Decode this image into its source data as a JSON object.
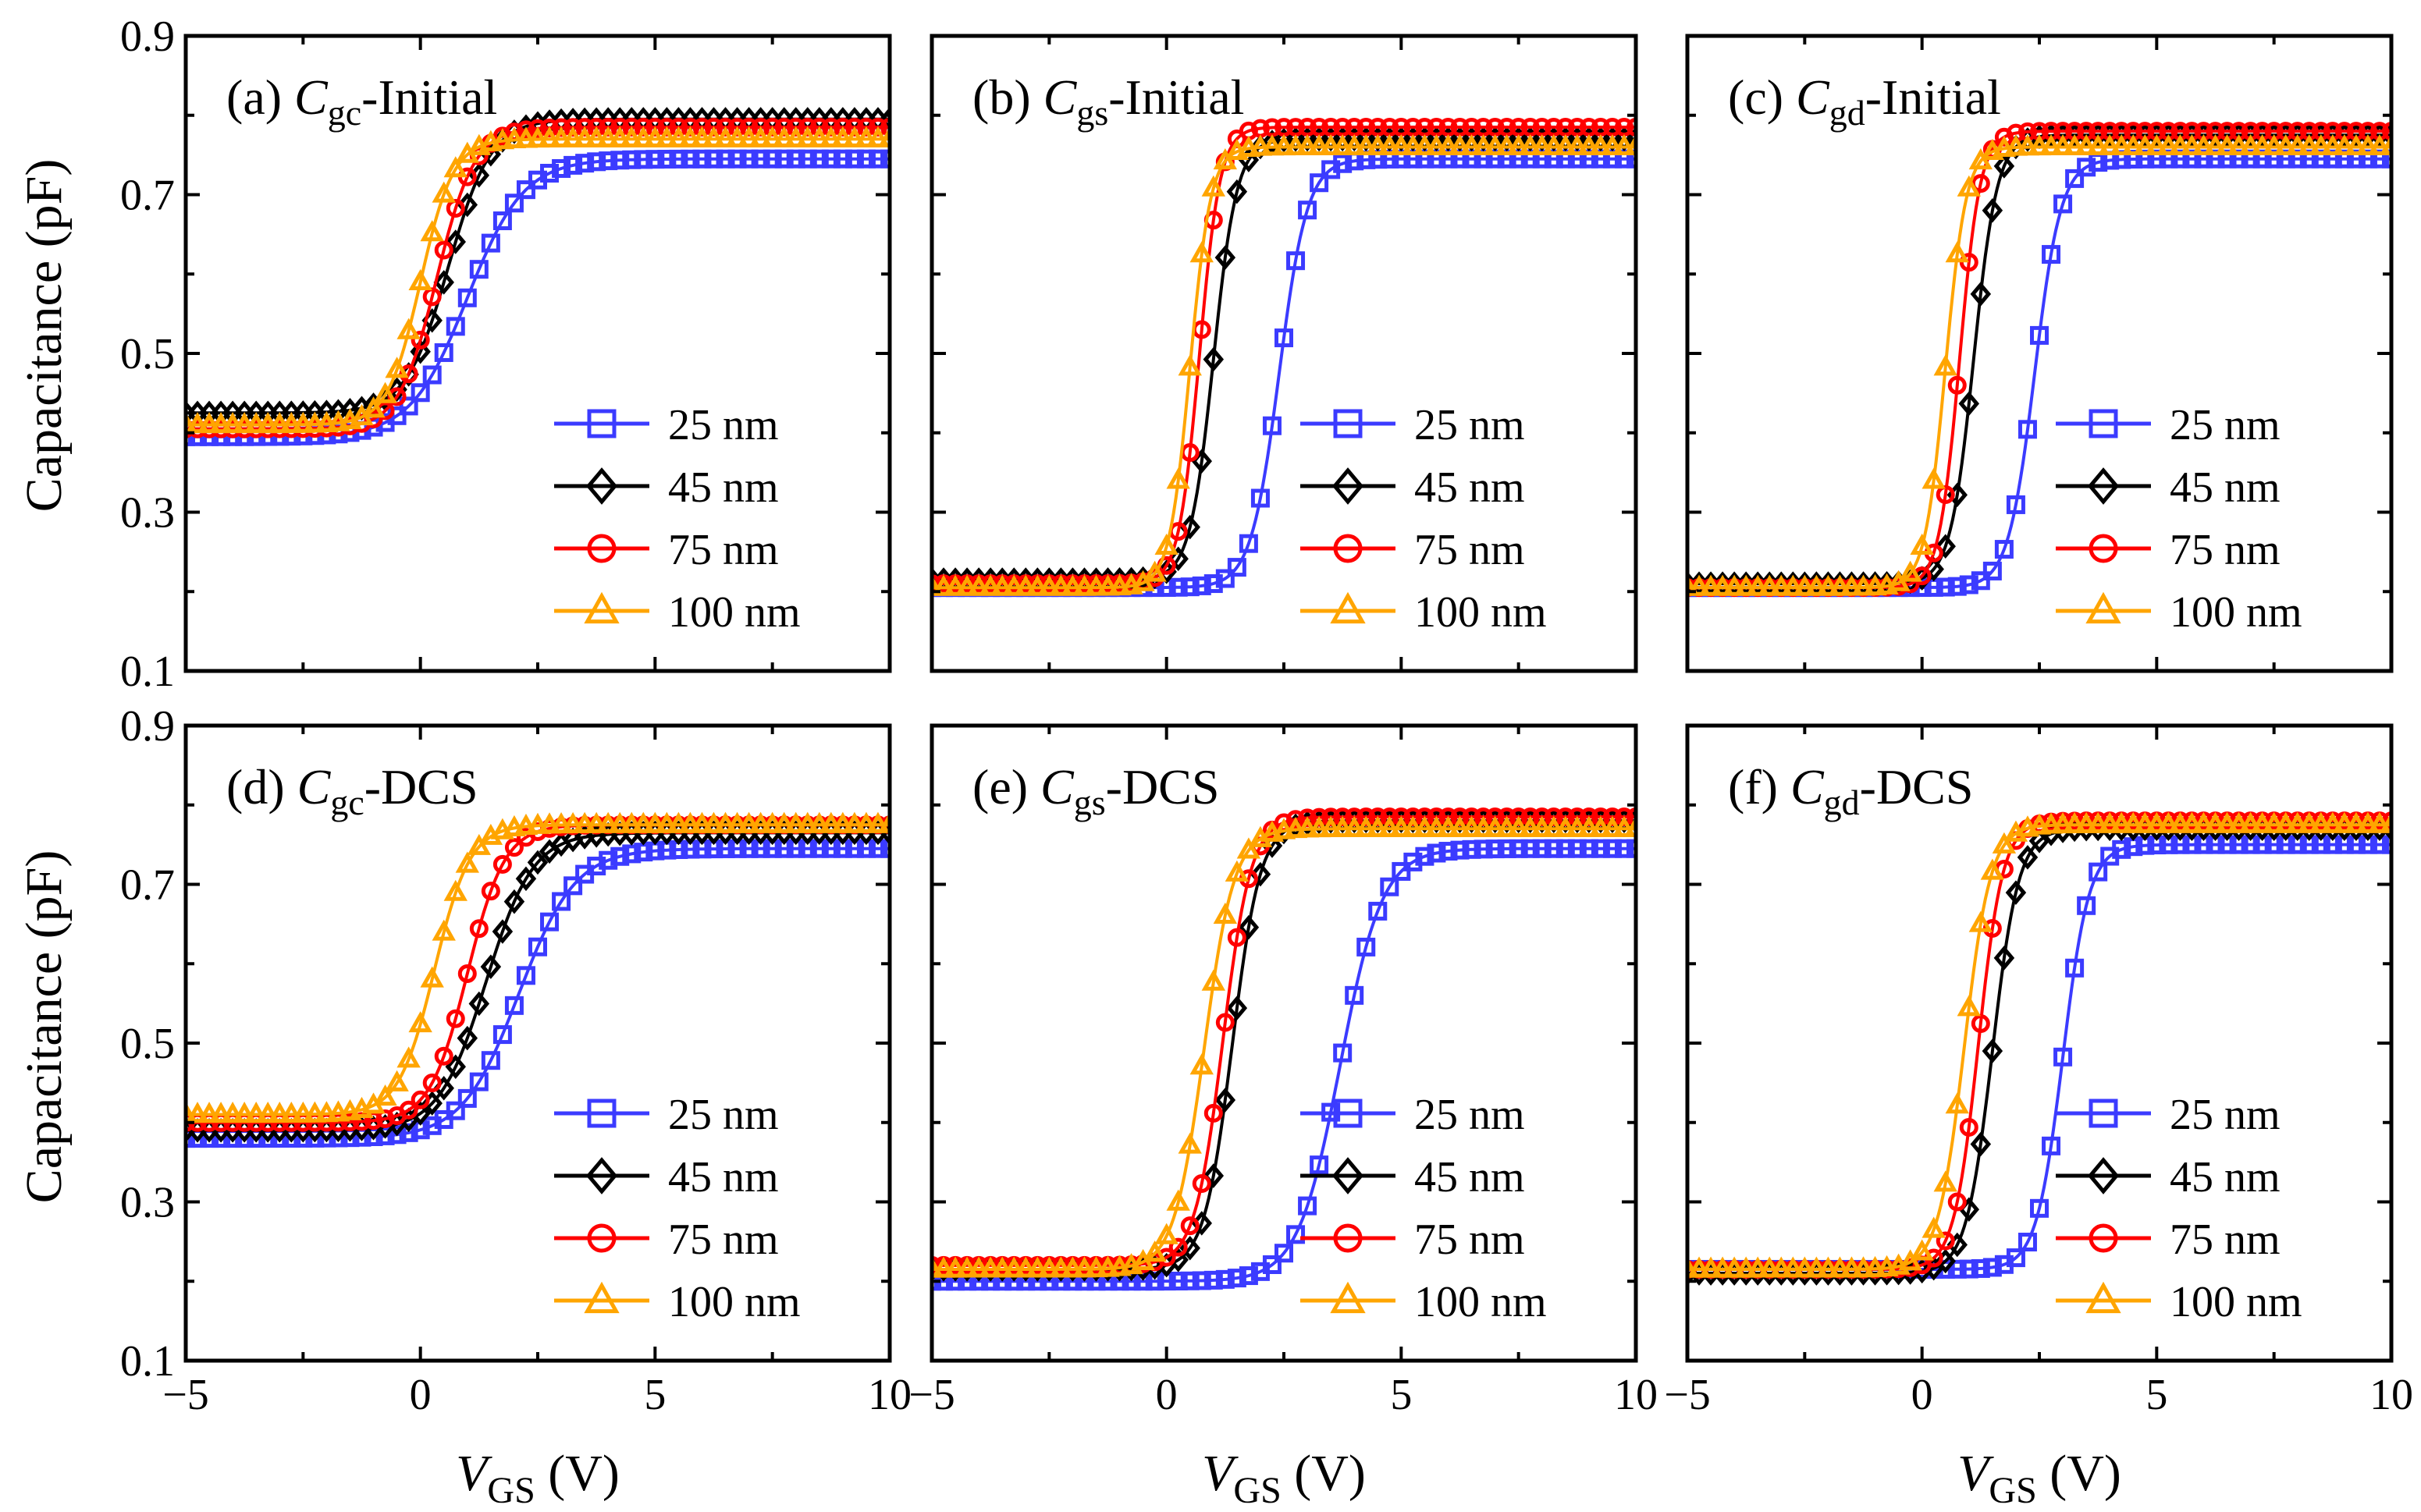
{
  "figure": {
    "ylabel_top": "Capacitance (pF)",
    "ylabel_bottom": "Capacitance (pF)",
    "xlabel_main": "V",
    "xlabel_sub": "GS",
    "xlabel_unit": "(V)"
  },
  "series_styles": [
    {
      "name": "25 nm",
      "color": "#3b3bff",
      "marker": "square"
    },
    {
      "name": "45 nm",
      "color": "#000000",
      "marker": "diamond"
    },
    {
      "name": "75 nm",
      "color": "#ff0000",
      "marker": "circle"
    },
    {
      "name": "100 nm",
      "color": "#ffa500",
      "marker": "triangle"
    }
  ],
  "chart_data": [
    {
      "type": "line",
      "panel": "(a)",
      "title_prefix": "(a) ",
      "title_var": "C",
      "title_sub": "gc",
      "title_suffix": "-Initial",
      "xlabel": "VGS (V)",
      "ylabel": "Capacitance (pF)",
      "xlim": [
        -5,
        10
      ],
      "ylim": [
        0.1,
        0.9
      ],
      "xticks": [
        "−5",
        "0",
        "5",
        "10"
      ],
      "yticks": [
        "0.1",
        "0.3",
        "0.5",
        "0.7",
        "0.9"
      ],
      "legend": [
        "25 nm",
        "45 nm",
        "75 nm",
        "100 nm"
      ],
      "series": [
        {
          "name": "25 nm",
          "cmin": 0.395,
          "cmax": 0.745,
          "v0": 1.0,
          "slope": 0.6
        },
        {
          "name": "45 nm",
          "cmin": 0.425,
          "cmax": 0.795,
          "v0": 0.6,
          "slope": 0.45
        },
        {
          "name": "75 nm",
          "cmin": 0.405,
          "cmax": 0.785,
          "v0": 0.35,
          "slope": 0.4
        },
        {
          "name": "100 nm",
          "cmin": 0.41,
          "cmax": 0.77,
          "v0": 0.0,
          "slope": 0.35
        }
      ]
    },
    {
      "type": "line",
      "panel": "(b)",
      "title_prefix": "(b) ",
      "title_var": "C",
      "title_sub": "gs",
      "title_suffix": "-Initial",
      "xlabel": "VGS (V)",
      "ylabel": "Capacitance (pF)",
      "xlim": [
        -5,
        10
      ],
      "ylim": [
        0.1,
        0.9
      ],
      "xticks": [
        "−5",
        "0",
        "5",
        "10"
      ],
      "yticks": [],
      "legend": [
        "25 nm",
        "45 nm",
        "75 nm",
        "100 nm"
      ],
      "series": [
        {
          "name": "25 nm",
          "cmin": 0.205,
          "cmax": 0.745,
          "v0": 2.4,
          "slope": 0.3
        },
        {
          "name": "45 nm",
          "cmin": 0.215,
          "cmax": 0.77,
          "v0": 1.0,
          "slope": 0.25
        },
        {
          "name": "75 nm",
          "cmin": 0.21,
          "cmax": 0.785,
          "v0": 0.7,
          "slope": 0.22
        },
        {
          "name": "100 nm",
          "cmin": 0.205,
          "cmax": 0.76,
          "v0": 0.5,
          "slope": 0.22
        }
      ]
    },
    {
      "type": "line",
      "panel": "(c)",
      "title_prefix": "(c) ",
      "title_var": "C",
      "title_sub": "gd",
      "title_suffix": "-Initial",
      "xlabel": "VGS (V)",
      "ylabel": "Capacitance (pF)",
      "xlim": [
        -5,
        10
      ],
      "ylim": [
        0.1,
        0.9
      ],
      "xticks": [
        "−5",
        "0",
        "5",
        "10"
      ],
      "yticks": [],
      "legend": [
        "25 nm",
        "45 nm",
        "75 nm",
        "100 nm"
      ],
      "series": [
        {
          "name": "25 nm",
          "cmin": 0.205,
          "cmax": 0.745,
          "v0": 2.4,
          "slope": 0.28
        },
        {
          "name": "45 nm",
          "cmin": 0.21,
          "cmax": 0.775,
          "v0": 1.1,
          "slope": 0.25
        },
        {
          "name": "75 nm",
          "cmin": 0.205,
          "cmax": 0.78,
          "v0": 0.8,
          "slope": 0.22
        },
        {
          "name": "100 nm",
          "cmin": 0.205,
          "cmax": 0.76,
          "v0": 0.5,
          "slope": 0.22
        }
      ]
    },
    {
      "type": "line",
      "panel": "(d)",
      "title_prefix": "(d) ",
      "title_var": "C",
      "title_sub": "gc",
      "title_suffix": "-DCS",
      "xlabel": "VGS (V)",
      "ylabel": "Capacitance (pF)",
      "xlim": [
        -5,
        10
      ],
      "ylim": [
        0.1,
        0.9
      ],
      "xticks": [
        "−5",
        "0",
        "5",
        "10"
      ],
      "yticks": [
        "0.1",
        "0.3",
        "0.5",
        "0.7",
        "0.9"
      ],
      "legend": [
        "25 nm",
        "45 nm",
        "75 nm",
        "100 nm"
      ],
      "series": [
        {
          "name": "25 nm",
          "cmin": 0.38,
          "cmax": 0.745,
          "v0": 2.1,
          "slope": 0.6
        },
        {
          "name": "45 nm",
          "cmin": 0.39,
          "cmax": 0.765,
          "v0": 1.4,
          "slope": 0.5
        },
        {
          "name": "75 nm",
          "cmin": 0.4,
          "cmax": 0.775,
          "v0": 1.0,
          "slope": 0.4
        },
        {
          "name": "100 nm",
          "cmin": 0.41,
          "cmax": 0.775,
          "v0": 0.3,
          "slope": 0.38
        }
      ]
    },
    {
      "type": "line",
      "panel": "(e)",
      "title_prefix": "(e) ",
      "title_var": "C",
      "title_sub": "gs",
      "title_suffix": "-DCS",
      "xlabel": "VGS (V)",
      "ylabel": "Capacitance (pF)",
      "xlim": [
        -5,
        10
      ],
      "ylim": [
        0.1,
        0.9
      ],
      "xticks": [
        "−5",
        "0",
        "5",
        "10"
      ],
      "yticks": [],
      "legend": [
        "25 nm",
        "45 nm",
        "75 nm",
        "100 nm"
      ],
      "series": [
        {
          "name": "25 nm",
          "cmin": 0.2,
          "cmax": 0.745,
          "v0": 3.7,
          "slope": 0.45
        },
        {
          "name": "45 nm",
          "cmin": 0.215,
          "cmax": 0.78,
          "v0": 1.4,
          "slope": 0.3
        },
        {
          "name": "75 nm",
          "cmin": 0.22,
          "cmax": 0.785,
          "v0": 1.2,
          "slope": 0.3
        },
        {
          "name": "100 nm",
          "cmin": 0.215,
          "cmax": 0.77,
          "v0": 0.8,
          "slope": 0.32
        }
      ]
    },
    {
      "type": "line",
      "panel": "(f)",
      "title_prefix": "(f) ",
      "title_var": "C",
      "title_sub": "gd",
      "title_suffix": "-DCS",
      "xlabel": "VGS (V)",
      "ylabel": "Capacitance (pF)",
      "xlim": [
        -5,
        10
      ],
      "ylim": [
        0.1,
        0.9
      ],
      "xticks": [
        "−5",
        "0",
        "5",
        "10"
      ],
      "yticks": [],
      "legend": [
        "25 nm",
        "45 nm",
        "75 nm",
        "100 nm"
      ],
      "series": [
        {
          "name": "25 nm",
          "cmin": 0.215,
          "cmax": 0.75,
          "v0": 3.0,
          "slope": 0.28
        },
        {
          "name": "45 nm",
          "cmin": 0.21,
          "cmax": 0.77,
          "v0": 1.5,
          "slope": 0.28
        },
        {
          "name": "75 nm",
          "cmin": 0.215,
          "cmax": 0.78,
          "v0": 1.2,
          "slope": 0.26
        },
        {
          "name": "100 nm",
          "cmin": 0.215,
          "cmax": 0.775,
          "v0": 0.9,
          "slope": 0.28
        }
      ]
    }
  ]
}
